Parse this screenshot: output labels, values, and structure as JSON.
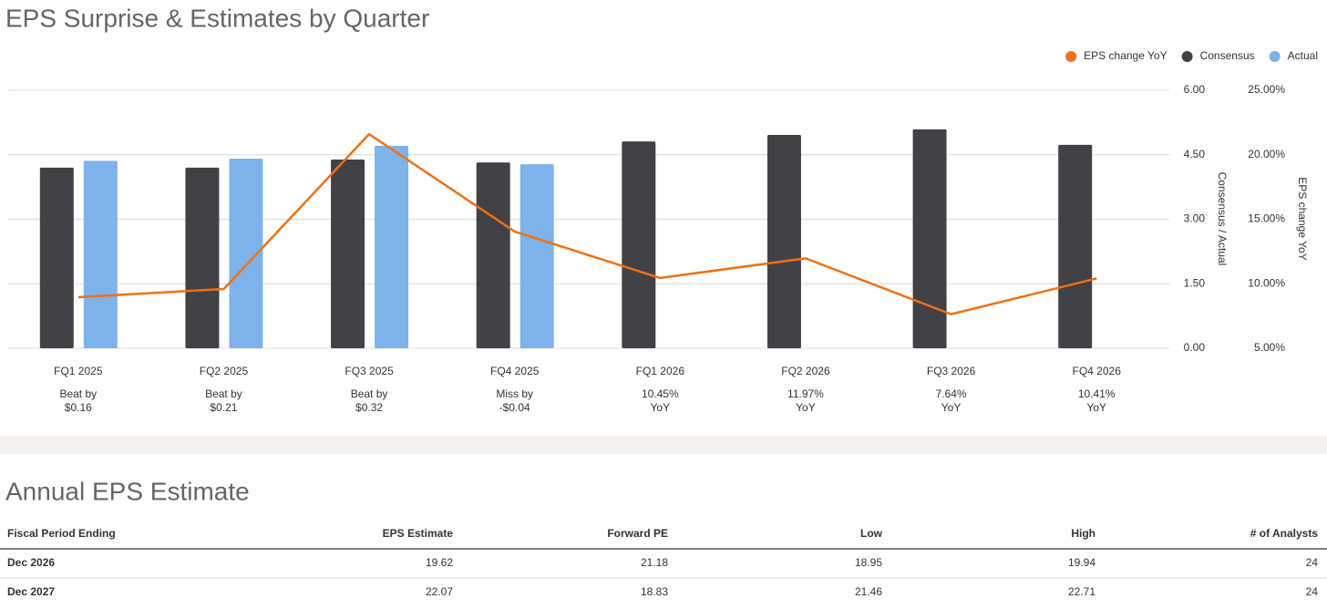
{
  "chart_data": {
    "type": "bar",
    "title": "EPS Surprise & Estimates by Quarter",
    "categories": [
      "FQ1 2025",
      "FQ2 2025",
      "FQ3 2025",
      "FQ4 2025",
      "FQ1 2026",
      "FQ2 2026",
      "FQ3 2026",
      "FQ4 2026"
    ],
    "series": [
      {
        "name": "EPS change YoY",
        "type": "line",
        "axis": "y2",
        "color": "#f07014",
        "values": [
          8.96,
          9.59,
          21.6,
          14.05,
          10.45,
          11.97,
          7.64,
          10.41
        ]
      },
      {
        "name": "Consensus",
        "type": "bar",
        "color": "#424145",
        "values": [
          4.2,
          4.2,
          4.39,
          4.32,
          4.81,
          4.96,
          5.09,
          4.73
        ]
      },
      {
        "name": "Actual",
        "type": "bar",
        "color": "#7db3ea",
        "values": [
          4.36,
          4.41,
          4.71,
          4.28,
          null,
          null,
          null,
          null
        ]
      }
    ],
    "ylabel": "Consensus / Actual",
    "y2label": "EPS change YoY",
    "ylim": [
      0,
      6
    ],
    "yticks": [
      {
        "value": 0,
        "label": "0.00"
      },
      {
        "value": 1.5,
        "label": "1.50"
      },
      {
        "value": 3,
        "label": "3.00"
      },
      {
        "value": 4.5,
        "label": "4.50"
      },
      {
        "value": 6,
        "label": "6.00"
      }
    ],
    "y2lim": [
      5,
      25
    ],
    "y2ticks": [
      {
        "value": 5,
        "label": "5.00%"
      },
      {
        "value": 10,
        "label": "10.00%"
      },
      {
        "value": 15,
        "label": "15.00%"
      },
      {
        "value": 20,
        "label": "20.00%"
      },
      {
        "value": 25,
        "label": "25.00%"
      }
    ],
    "grid": true,
    "legend": "top-right",
    "annotations": [
      {
        "lines": [
          "Beat by",
          "$0.16"
        ],
        "color": "#16792f"
      },
      {
        "lines": [
          "Beat by",
          "$0.21"
        ],
        "color": "#16792f"
      },
      {
        "lines": [
          "Beat by",
          "$0.32"
        ],
        "color": "#16792f"
      },
      {
        "lines": [
          "Miss by",
          "-$0.04"
        ],
        "color": "#b3262b"
      },
      {
        "lines": [
          "10.45%",
          "YoY"
        ],
        "color": "#16792f"
      },
      {
        "lines": [
          "11.97%",
          "YoY"
        ],
        "color": "#16792f"
      },
      {
        "lines": [
          "7.64%",
          "YoY"
        ],
        "color": "#16792f"
      },
      {
        "lines": [
          "10.41%",
          "YoY"
        ],
        "color": "#16792f"
      }
    ]
  },
  "table": {
    "title": "Annual EPS Estimate",
    "columns": [
      "Fiscal Period Ending",
      "EPS Estimate",
      "Forward PE",
      "Low",
      "High",
      "# of Analysts"
    ],
    "rows": [
      [
        "Dec 2026",
        19.62,
        21.18,
        18.95,
        19.94,
        24
      ],
      [
        "Dec 2027",
        22.07,
        18.83,
        21.46,
        22.71,
        24
      ]
    ]
  }
}
